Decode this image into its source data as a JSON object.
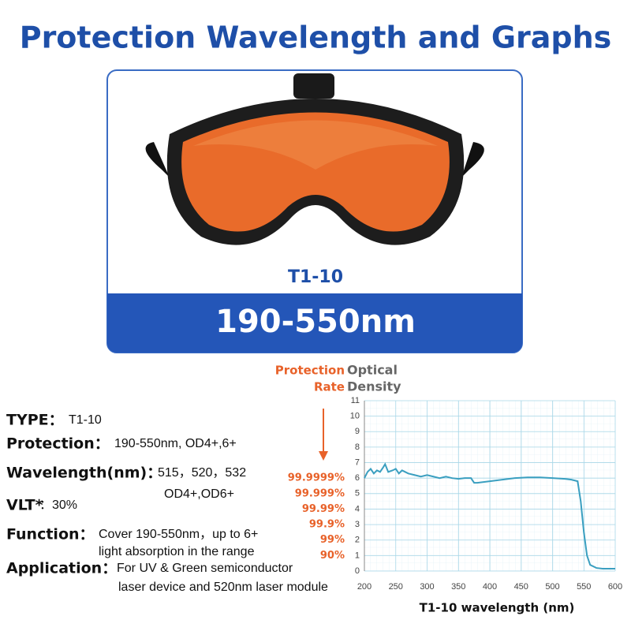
{
  "header": {
    "title": "Protection Wavelength and Graphs"
  },
  "product": {
    "model": "T1-10",
    "range": "190-550nm"
  },
  "specs": {
    "items": [
      {
        "label": "TYPE：",
        "value": [
          "T1-10"
        ]
      },
      {
        "label": "Protection：",
        "value": [
          "190-550nm, OD4+,6+"
        ]
      },
      {
        "label": "Wavelength(nm)：",
        "value": [
          "515，520，532",
          "OD4+,OD6+"
        ]
      },
      {
        "label": "VLT*",
        "value": [
          "：30%"
        ]
      },
      {
        "label": "Function：",
        "value": [
          "Cover 190-550nm，up to 6+",
          "light absorption in the range"
        ]
      },
      {
        "label": "Application：",
        "value": [
          "For UV & Green semiconductor",
          "laser device and 520nm laser module"
        ]
      }
    ]
  },
  "chart_data": {
    "type": "line",
    "rate_label": [
      "Protection",
      "Rate"
    ],
    "density_label": [
      "Optical",
      "Density"
    ],
    "x_label": "T1-10 wavelength (nm)",
    "x": [
      200,
      205,
      210,
      215,
      220,
      225,
      230,
      233,
      238,
      245,
      250,
      255,
      260,
      265,
      270,
      280,
      290,
      300,
      310,
      320,
      330,
      340,
      350,
      360,
      370,
      375,
      380,
      400,
      420,
      440,
      460,
      480,
      500,
      520,
      530,
      540,
      545,
      550,
      555,
      560,
      570,
      580,
      600
    ],
    "series": [
      {
        "name": "T1-10",
        "color": "#3a9fc0",
        "values": [
          6.0,
          6.4,
          6.6,
          6.3,
          6.5,
          6.4,
          6.7,
          6.9,
          6.4,
          6.5,
          6.6,
          6.3,
          6.5,
          6.4,
          6.3,
          6.2,
          6.1,
          6.2,
          6.1,
          6.0,
          6.1,
          6.0,
          5.95,
          6.0,
          6.0,
          5.7,
          5.7,
          5.8,
          5.9,
          6.0,
          6.05,
          6.05,
          6.0,
          5.95,
          5.9,
          5.8,
          4.5,
          2.5,
          1.0,
          0.4,
          0.2,
          0.15,
          0.15
        ]
      }
    ],
    "xlim": [
      200,
      600
    ],
    "xticks": [
      200,
      250,
      300,
      350,
      400,
      450,
      500,
      550,
      600
    ],
    "ylim": [
      0,
      11
    ],
    "yticks": [
      0,
      1,
      2,
      3,
      4,
      5,
      6,
      7,
      8,
      9,
      10,
      11
    ],
    "rate_ticks": [
      {
        "value": 6,
        "label": "99.9999%"
      },
      {
        "value": 5,
        "label": "99.999%"
      },
      {
        "value": 4,
        "label": "99.99%"
      },
      {
        "value": 3,
        "label": "99.9%"
      },
      {
        "value": 2,
        "label": "99%"
      },
      {
        "value": 1,
        "label": "90%"
      }
    ],
    "grid": true
  }
}
